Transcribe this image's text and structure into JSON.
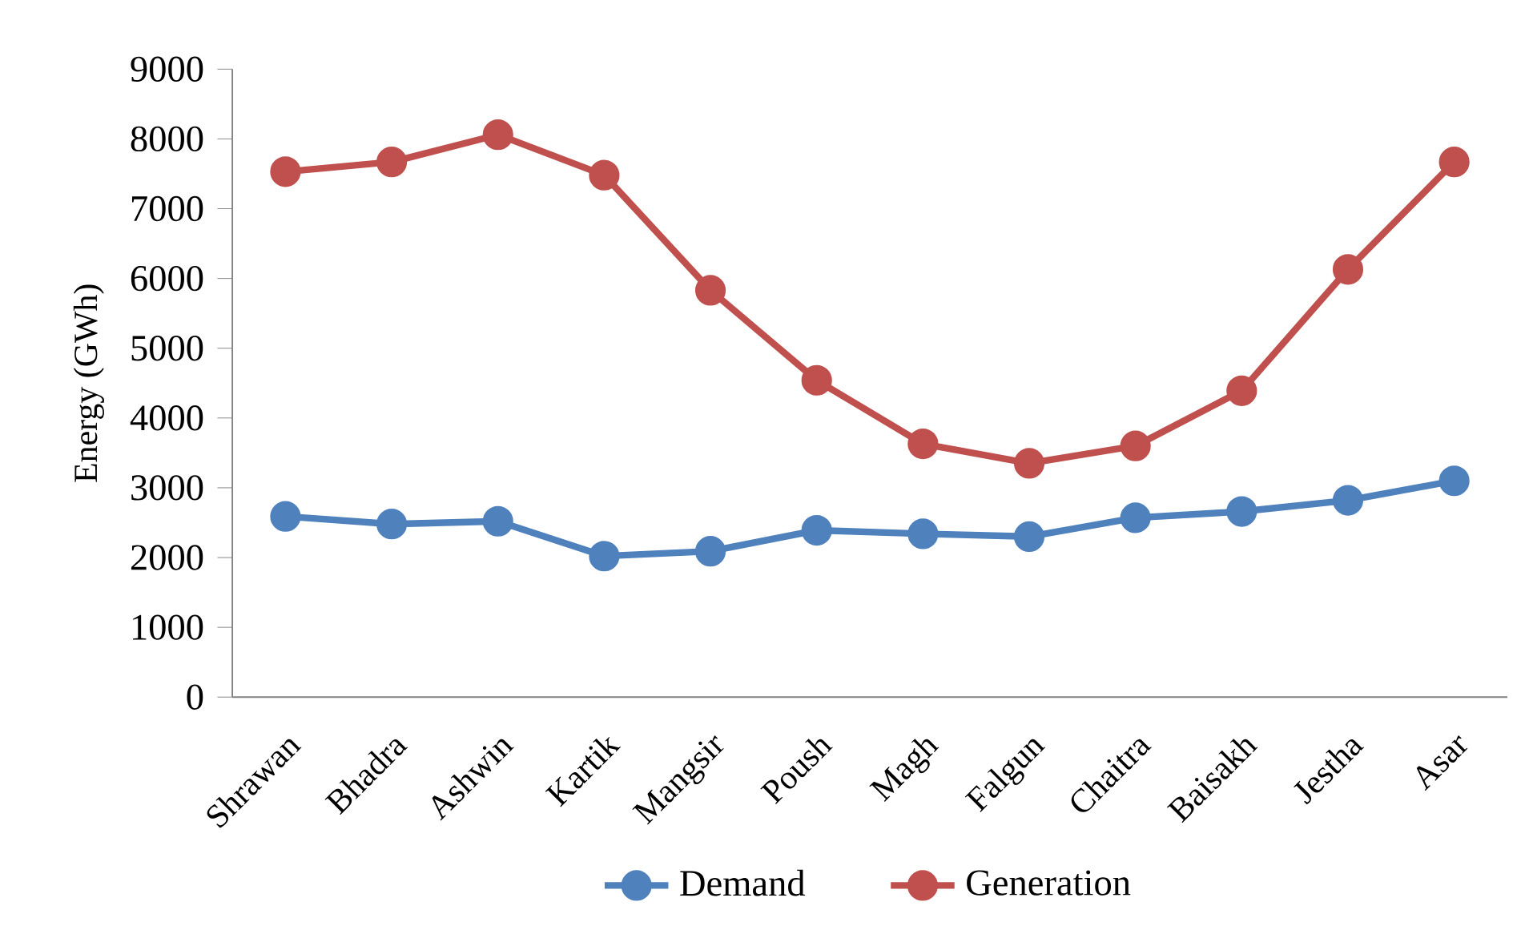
{
  "chart_data": {
    "type": "line",
    "ylabel": "Energy (GWh)",
    "categories": [
      "Shrawan",
      "Bhadra",
      "Ashwin",
      "Kartik",
      "Mangsir",
      "Poush",
      "Magh",
      "Falgun",
      "Chaitra",
      "Baisakh",
      "Jestha",
      "Asar"
    ],
    "series": [
      {
        "name": "Demand",
        "color": "#4f81bd",
        "values": [
          2590,
          2480,
          2520,
          2020,
          2090,
          2390,
          2340,
          2300,
          2570,
          2660,
          2820,
          3100
        ]
      },
      {
        "name": "Generation",
        "color": "#c0504d",
        "values": [
          7530,
          7670,
          8060,
          7480,
          5830,
          4540,
          3630,
          3350,
          3600,
          4390,
          6130,
          7670
        ]
      }
    ],
    "ylim": [
      0,
      9000
    ],
    "yticks": [
      0,
      1000,
      2000,
      3000,
      4000,
      5000,
      6000,
      7000,
      8000,
      9000
    ],
    "grid": false,
    "legend": "bottom",
    "marker": "circle",
    "line_style": "solid"
  }
}
